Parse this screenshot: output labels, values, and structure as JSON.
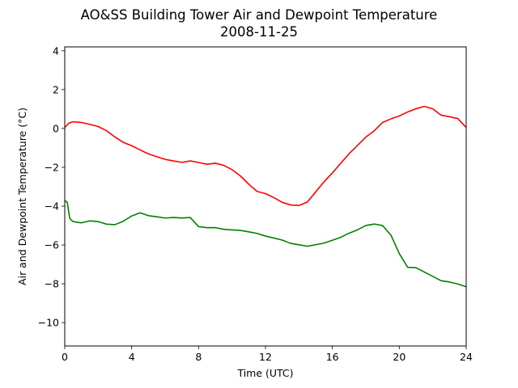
{
  "chart_data": {
    "type": "line",
    "title": "AO&SS Building Tower Air and Dewpoint Temperature",
    "subtitle": "2008-11-25",
    "xlabel": "Time (UTC)",
    "ylabel": "Air and Dewpoint Temperature (°C)",
    "xlim": [
      0,
      24
    ],
    "ylim": [
      -11.2,
      4.2
    ],
    "xticks": [
      0,
      4,
      8,
      12,
      16,
      20,
      24
    ],
    "yticks": [
      4,
      2,
      0,
      -2,
      -4,
      -6,
      -8,
      -10
    ],
    "ytick_labels": [
      "4",
      "2",
      "0",
      "−2",
      "−4",
      "−6",
      "−8",
      "−10"
    ],
    "grid": false,
    "series": [
      {
        "color": "#ff0000",
        "x": [
          0,
          0.25,
          0.5,
          1,
          1.5,
          2,
          2.5,
          3,
          3.5,
          4,
          4.5,
          5,
          5.5,
          6,
          6.5,
          7,
          7.5,
          8,
          8.5,
          9,
          9.5,
          10,
          10.5,
          11,
          11.5,
          12,
          12.5,
          13,
          13.5,
          14,
          14.5,
          15,
          15.5,
          16,
          16.5,
          17,
          17.5,
          18,
          18.5,
          19,
          19.5,
          20,
          20.5,
          21,
          21.5,
          22,
          22.5,
          23,
          23.5,
          24
        ],
        "y": [
          0.05,
          0.25,
          0.3,
          0.25,
          0.15,
          0.05,
          -0.15,
          -0.45,
          -0.7,
          -0.85,
          -1.05,
          -1.25,
          -1.4,
          -1.55,
          -1.65,
          -1.75,
          -1.7,
          -1.8,
          -1.9,
          -1.85,
          -1.95,
          -2.15,
          -2.45,
          -2.85,
          -3.2,
          -3.3,
          -3.5,
          -3.75,
          -3.9,
          -3.95,
          -3.8,
          -3.3,
          -2.8,
          -2.35,
          -1.85,
          -1.35,
          -0.9,
          -0.45,
          -0.1,
          0.35,
          0.55,
          0.7,
          0.9,
          1.05,
          1.15,
          1.0,
          0.65,
          0.55,
          0.45,
          0.05
        ]
      },
      {
        "color": "#008000",
        "x": [
          0,
          0.15,
          0.3,
          0.5,
          1,
          1.5,
          2,
          2.5,
          3,
          3.5,
          4,
          4.5,
          5,
          5.5,
          6,
          6.5,
          7,
          7.5,
          8,
          8.5,
          9,
          9.5,
          10,
          10.5,
          11,
          11.5,
          12,
          12.5,
          13,
          13.5,
          14,
          14.5,
          15,
          15.5,
          16,
          16.5,
          17,
          17.5,
          18,
          18.5,
          19,
          19.5,
          20,
          20.5,
          21,
          21.5,
          22,
          22.5,
          23,
          23.5,
          24
        ],
        "y": [
          -3.7,
          -3.8,
          -4.6,
          -4.75,
          -4.8,
          -4.7,
          -4.75,
          -4.9,
          -4.95,
          -4.8,
          -4.55,
          -4.4,
          -4.55,
          -4.6,
          -4.65,
          -4.6,
          -4.6,
          -4.55,
          -5.0,
          -5.05,
          -5.05,
          -5.15,
          -5.2,
          -5.25,
          -5.35,
          -5.45,
          -5.6,
          -5.7,
          -5.8,
          -5.95,
          -6.0,
          -6.05,
          -5.95,
          -5.85,
          -5.7,
          -5.55,
          -5.35,
          -5.2,
          -5.0,
          -4.95,
          -5.05,
          -5.55,
          -6.5,
          -7.2,
          -7.2,
          -7.4,
          -7.6,
          -7.8,
          -7.85,
          -7.95,
          -8.15
        ]
      }
    ]
  }
}
